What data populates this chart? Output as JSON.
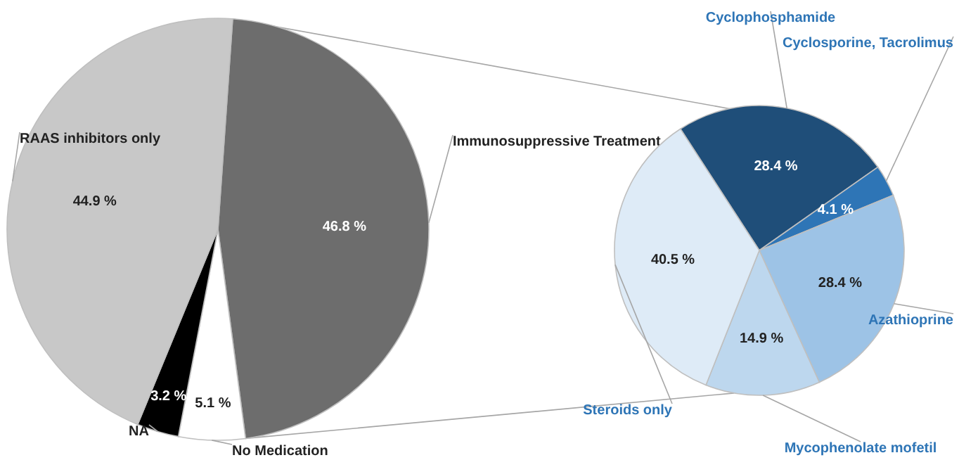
{
  "chart_data": [
    {
      "type": "pie",
      "categories": [
        "Immunosuppressive Treatment",
        "No Medication",
        "NA",
        "RAAS inhibitors only"
      ],
      "values": [
        46.8,
        5.1,
        3.2,
        44.9
      ],
      "colors": [
        "#6d6d6d",
        "#ffffff",
        "#000000",
        "#c8c8c8"
      ],
      "value_labels": [
        "46.8 %",
        "5.1 %",
        "3.2 %",
        "44.9 %"
      ]
    },
    {
      "type": "pie",
      "categories": [
        "Cyclophosphamide",
        "Cyclosporine, Tacrolimus",
        "Azathioprine",
        "Mycophenolate mofetil",
        "Steroids only"
      ],
      "values": [
        28.4,
        4.1,
        28.4,
        14.9,
        40.5
      ],
      "colors": [
        "#1f4e79",
        "#2e75b6",
        "#9dc3e6",
        "#bdd7ee",
        "#deebf7"
      ],
      "value_labels": [
        "28.4 %",
        "4.1 %",
        "28.4 %",
        "14.9 %",
        "40.5 %"
      ]
    }
  ]
}
